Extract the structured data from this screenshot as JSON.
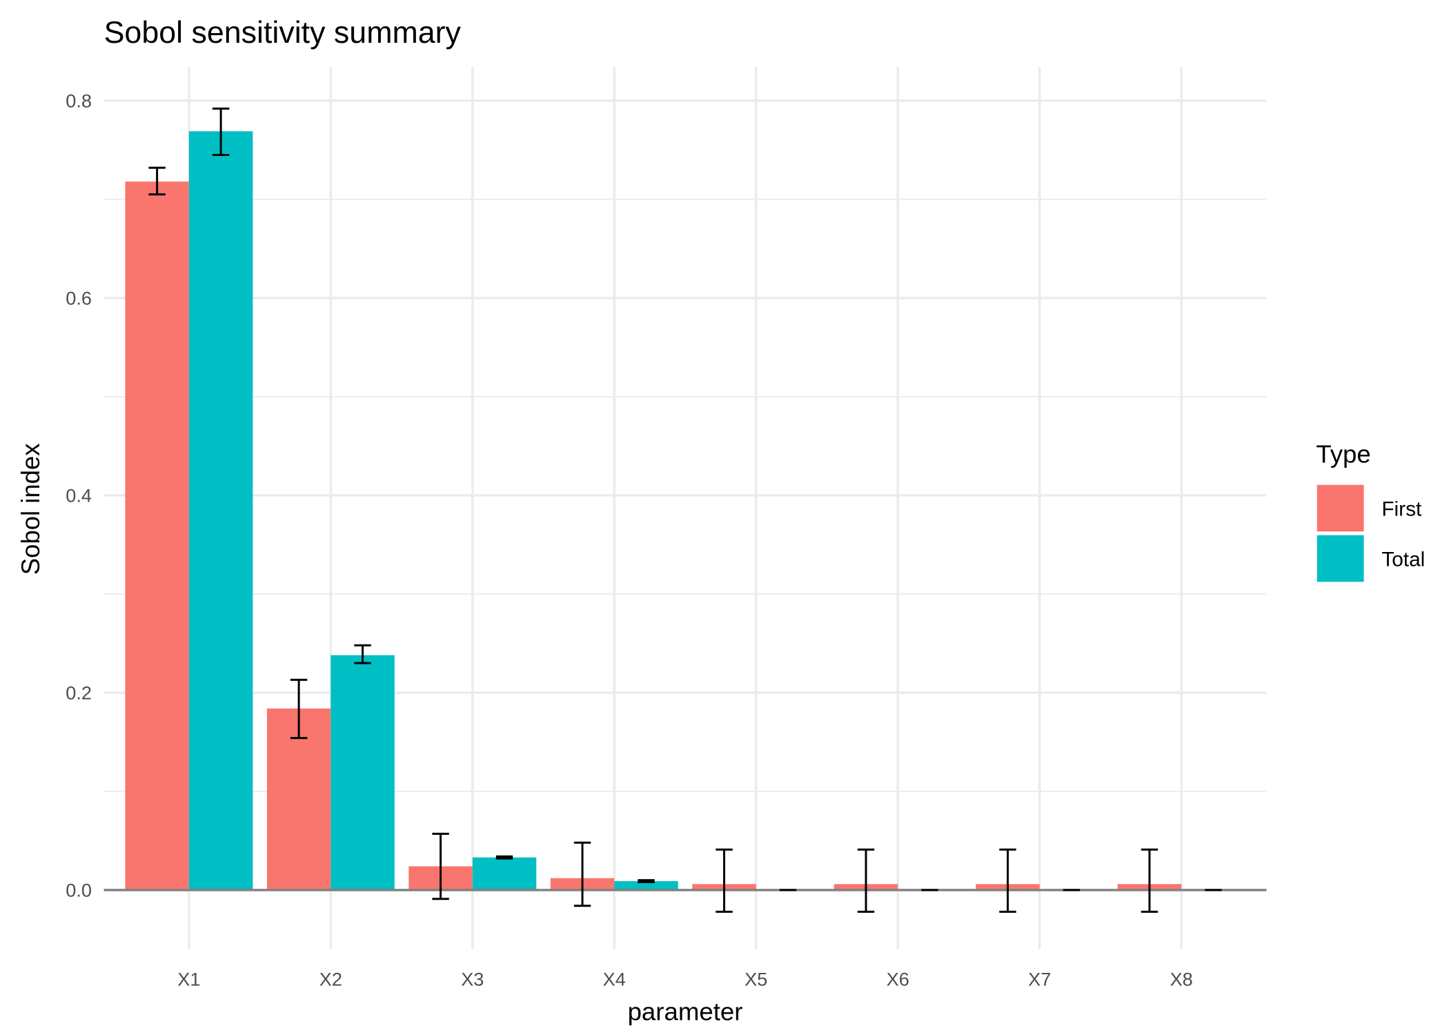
{
  "chart_data": {
    "type": "bar",
    "title": "Sobol sensitivity summary",
    "xlabel": "parameter",
    "ylabel": "Sobol index",
    "ylim": [
      -0.06,
      0.834
    ],
    "yticks": [
      0.0,
      0.2,
      0.4,
      0.6,
      0.8
    ],
    "ytick_labels": [
      "0.0",
      "0.2",
      "0.4",
      "0.6",
      "0.8"
    ],
    "grid": true,
    "categories": [
      "X1",
      "X2",
      "X3",
      "X4",
      "X5",
      "X6",
      "X7",
      "X8"
    ],
    "legend": {
      "title": "Type",
      "placement": "right"
    },
    "series": [
      {
        "name": "First",
        "color": "#F8766D",
        "values": [
          0.718,
          0.184,
          0.024,
          0.012,
          0.006,
          0.006,
          0.006,
          0.006
        ],
        "err_low": [
          0.705,
          0.154,
          -0.009,
          -0.016,
          -0.022,
          -0.022,
          -0.022,
          -0.022
        ],
        "err_high": [
          0.732,
          0.213,
          0.057,
          0.048,
          0.041,
          0.041,
          0.041,
          0.041
        ]
      },
      {
        "name": "Total",
        "color": "#00BFC4",
        "values": [
          0.769,
          0.238,
          0.033,
          0.009,
          0.0,
          0.0,
          0.0,
          0.0
        ],
        "err_low": [
          0.745,
          0.23,
          0.032,
          0.008,
          0.0,
          0.0,
          0.0,
          0.0
        ],
        "err_high": [
          0.792,
          0.248,
          0.034,
          0.01,
          0.0,
          0.0,
          0.0,
          0.0
        ]
      }
    ]
  }
}
